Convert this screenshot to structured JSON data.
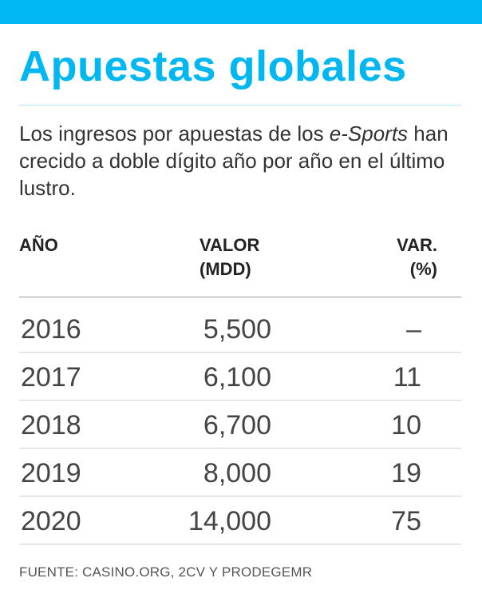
{
  "title": "Apuestas globales",
  "description": {
    "before": "Los ingresos por apuestas de los ",
    "italic": "e-Sports",
    "after": " han crecido a doble dígito año por año en el último lustro."
  },
  "colors": {
    "accent": "#00b7f1",
    "text": "#333333"
  },
  "chart_data": {
    "type": "table",
    "columns": [
      {
        "line1": "AÑO",
        "line2": ""
      },
      {
        "line1": "VALOR",
        "line2": "(MDD)"
      },
      {
        "line1": "VAR.",
        "line2": "(%)"
      }
    ],
    "rows": [
      {
        "year": "2016",
        "value": "5,500",
        "var": "–"
      },
      {
        "year": "2017",
        "value": "6,100",
        "var": "11"
      },
      {
        "year": "2018",
        "value": "6,700",
        "var": "10"
      },
      {
        "year": "2019",
        "value": "8,000",
        "var": "19"
      },
      {
        "year": "2020",
        "value": "14,000",
        "var": "75"
      }
    ]
  },
  "source": "FUENTE: CASINO.ORG,  2CV Y PRODEGEMR"
}
